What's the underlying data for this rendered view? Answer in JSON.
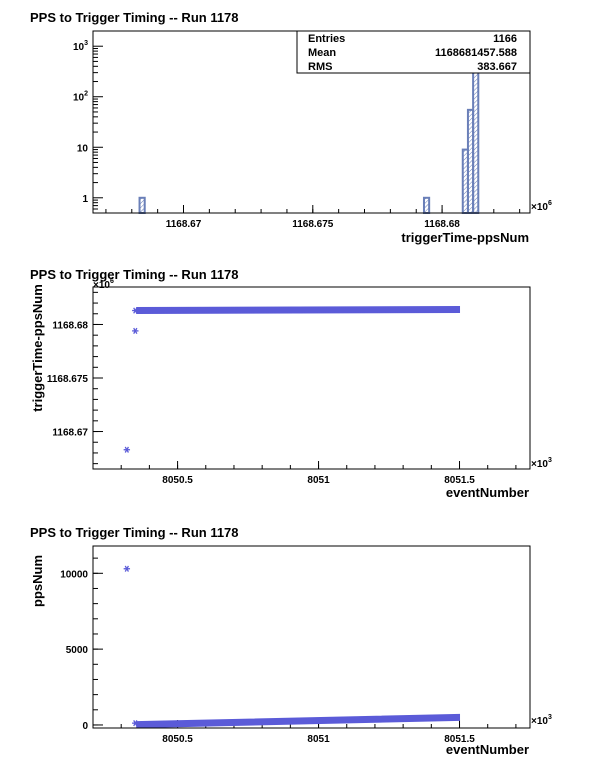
{
  "chart_data": [
    {
      "type": "bar",
      "title": "PPS to Trigger Timing -- Run 1178",
      "xlabel": "triggerTime-ppsNum",
      "ylabel": "",
      "x_multiplier": "×10",
      "x_multiplier_exp": "6",
      "xlim": [
        1168.6665,
        1168.6834
      ],
      "ylim": [
        0.5,
        2000
      ],
      "yscale": "log",
      "xticks": [
        {
          "v": 1168.67,
          "label": "1168.67"
        },
        {
          "v": 1168.675,
          "label": "1168.675"
        },
        {
          "v": 1168.68,
          "label": "1168.68"
        }
      ],
      "yticks": [
        {
          "v": 1,
          "base": "1",
          "exp": ""
        },
        {
          "v": 10,
          "base": "10",
          "exp": ""
        },
        {
          "v": 100,
          "base": "10",
          "exp": "2"
        },
        {
          "v": 1000,
          "base": "10",
          "exp": "3"
        }
      ],
      "bins": [
        {
          "x0": 1168.6683,
          "x1": 1168.6685,
          "value": 1
        },
        {
          "x0": 1168.6793,
          "x1": 1168.6795,
          "value": 1
        },
        {
          "x0": 1168.6808,
          "x1": 1168.681,
          "value": 9
        },
        {
          "x0": 1168.681,
          "x1": 1168.6812,
          "value": 55
        },
        {
          "x0": 1168.6812,
          "x1": 1168.6814,
          "value": 1100
        }
      ],
      "stats": [
        {
          "label": "Entries",
          "value": "1166"
        },
        {
          "label": "Mean",
          "value": "1168681457.588"
        },
        {
          "label": "RMS",
          "value": "383.667"
        }
      ]
    },
    {
      "type": "scatter",
      "title": "PPS to Trigger Timing -- Run 1178",
      "xlabel": "eventNumber",
      "ylabel": "triggerTime-ppsNum",
      "x_multiplier": "×10",
      "x_multiplier_exp": "3",
      "y_multiplier": "×10",
      "y_multiplier_exp": "6",
      "xlim": [
        8050.2,
        8051.75
      ],
      "ylim": [
        1168.6665,
        1168.6835
      ],
      "xticks": [
        {
          "v": 8050.5,
          "label": "8050.5"
        },
        {
          "v": 8051,
          "label": "8051"
        },
        {
          "v": 8051.5,
          "label": "8051.5"
        }
      ],
      "yticks": [
        {
          "v": 1168.67,
          "label": "1168.67"
        },
        {
          "v": 1168.675,
          "label": "1168.675"
        },
        {
          "v": 1168.68,
          "label": "1168.68"
        }
      ],
      "points": [
        {
          "x": 8050.32,
          "y": 1168.6683
        },
        {
          "x": 8050.35,
          "y": 1168.6794
        },
        {
          "x": 8050.35,
          "y": 1168.6813
        }
      ],
      "band": {
        "x": [
          8050.355,
          8051.5
        ],
        "y": [
          1168.6813,
          1168.6814
        ]
      }
    },
    {
      "type": "scatter",
      "title": "PPS to Trigger Timing -- Run 1178",
      "xlabel": "eventNumber",
      "ylabel": "ppsNum",
      "x_multiplier": "×10",
      "x_multiplier_exp": "3",
      "xlim": [
        8050.2,
        8051.75
      ],
      "ylim": [
        -200,
        11800
      ],
      "xticks": [
        {
          "v": 8050.5,
          "label": "8050.5"
        },
        {
          "v": 8051,
          "label": "8051"
        },
        {
          "v": 8051.5,
          "label": "8051.5"
        }
      ],
      "yticks": [
        {
          "v": 0,
          "label": "0"
        },
        {
          "v": 5000,
          "label": "5000"
        },
        {
          "v": 10000,
          "label": "10000"
        }
      ],
      "points": [
        {
          "x": 8050.32,
          "y": 10300
        },
        {
          "x": 8050.35,
          "y": 120
        }
      ],
      "band": {
        "x": [
          8050.355,
          8051.5
        ],
        "y": [
          20,
          500
        ]
      }
    }
  ]
}
